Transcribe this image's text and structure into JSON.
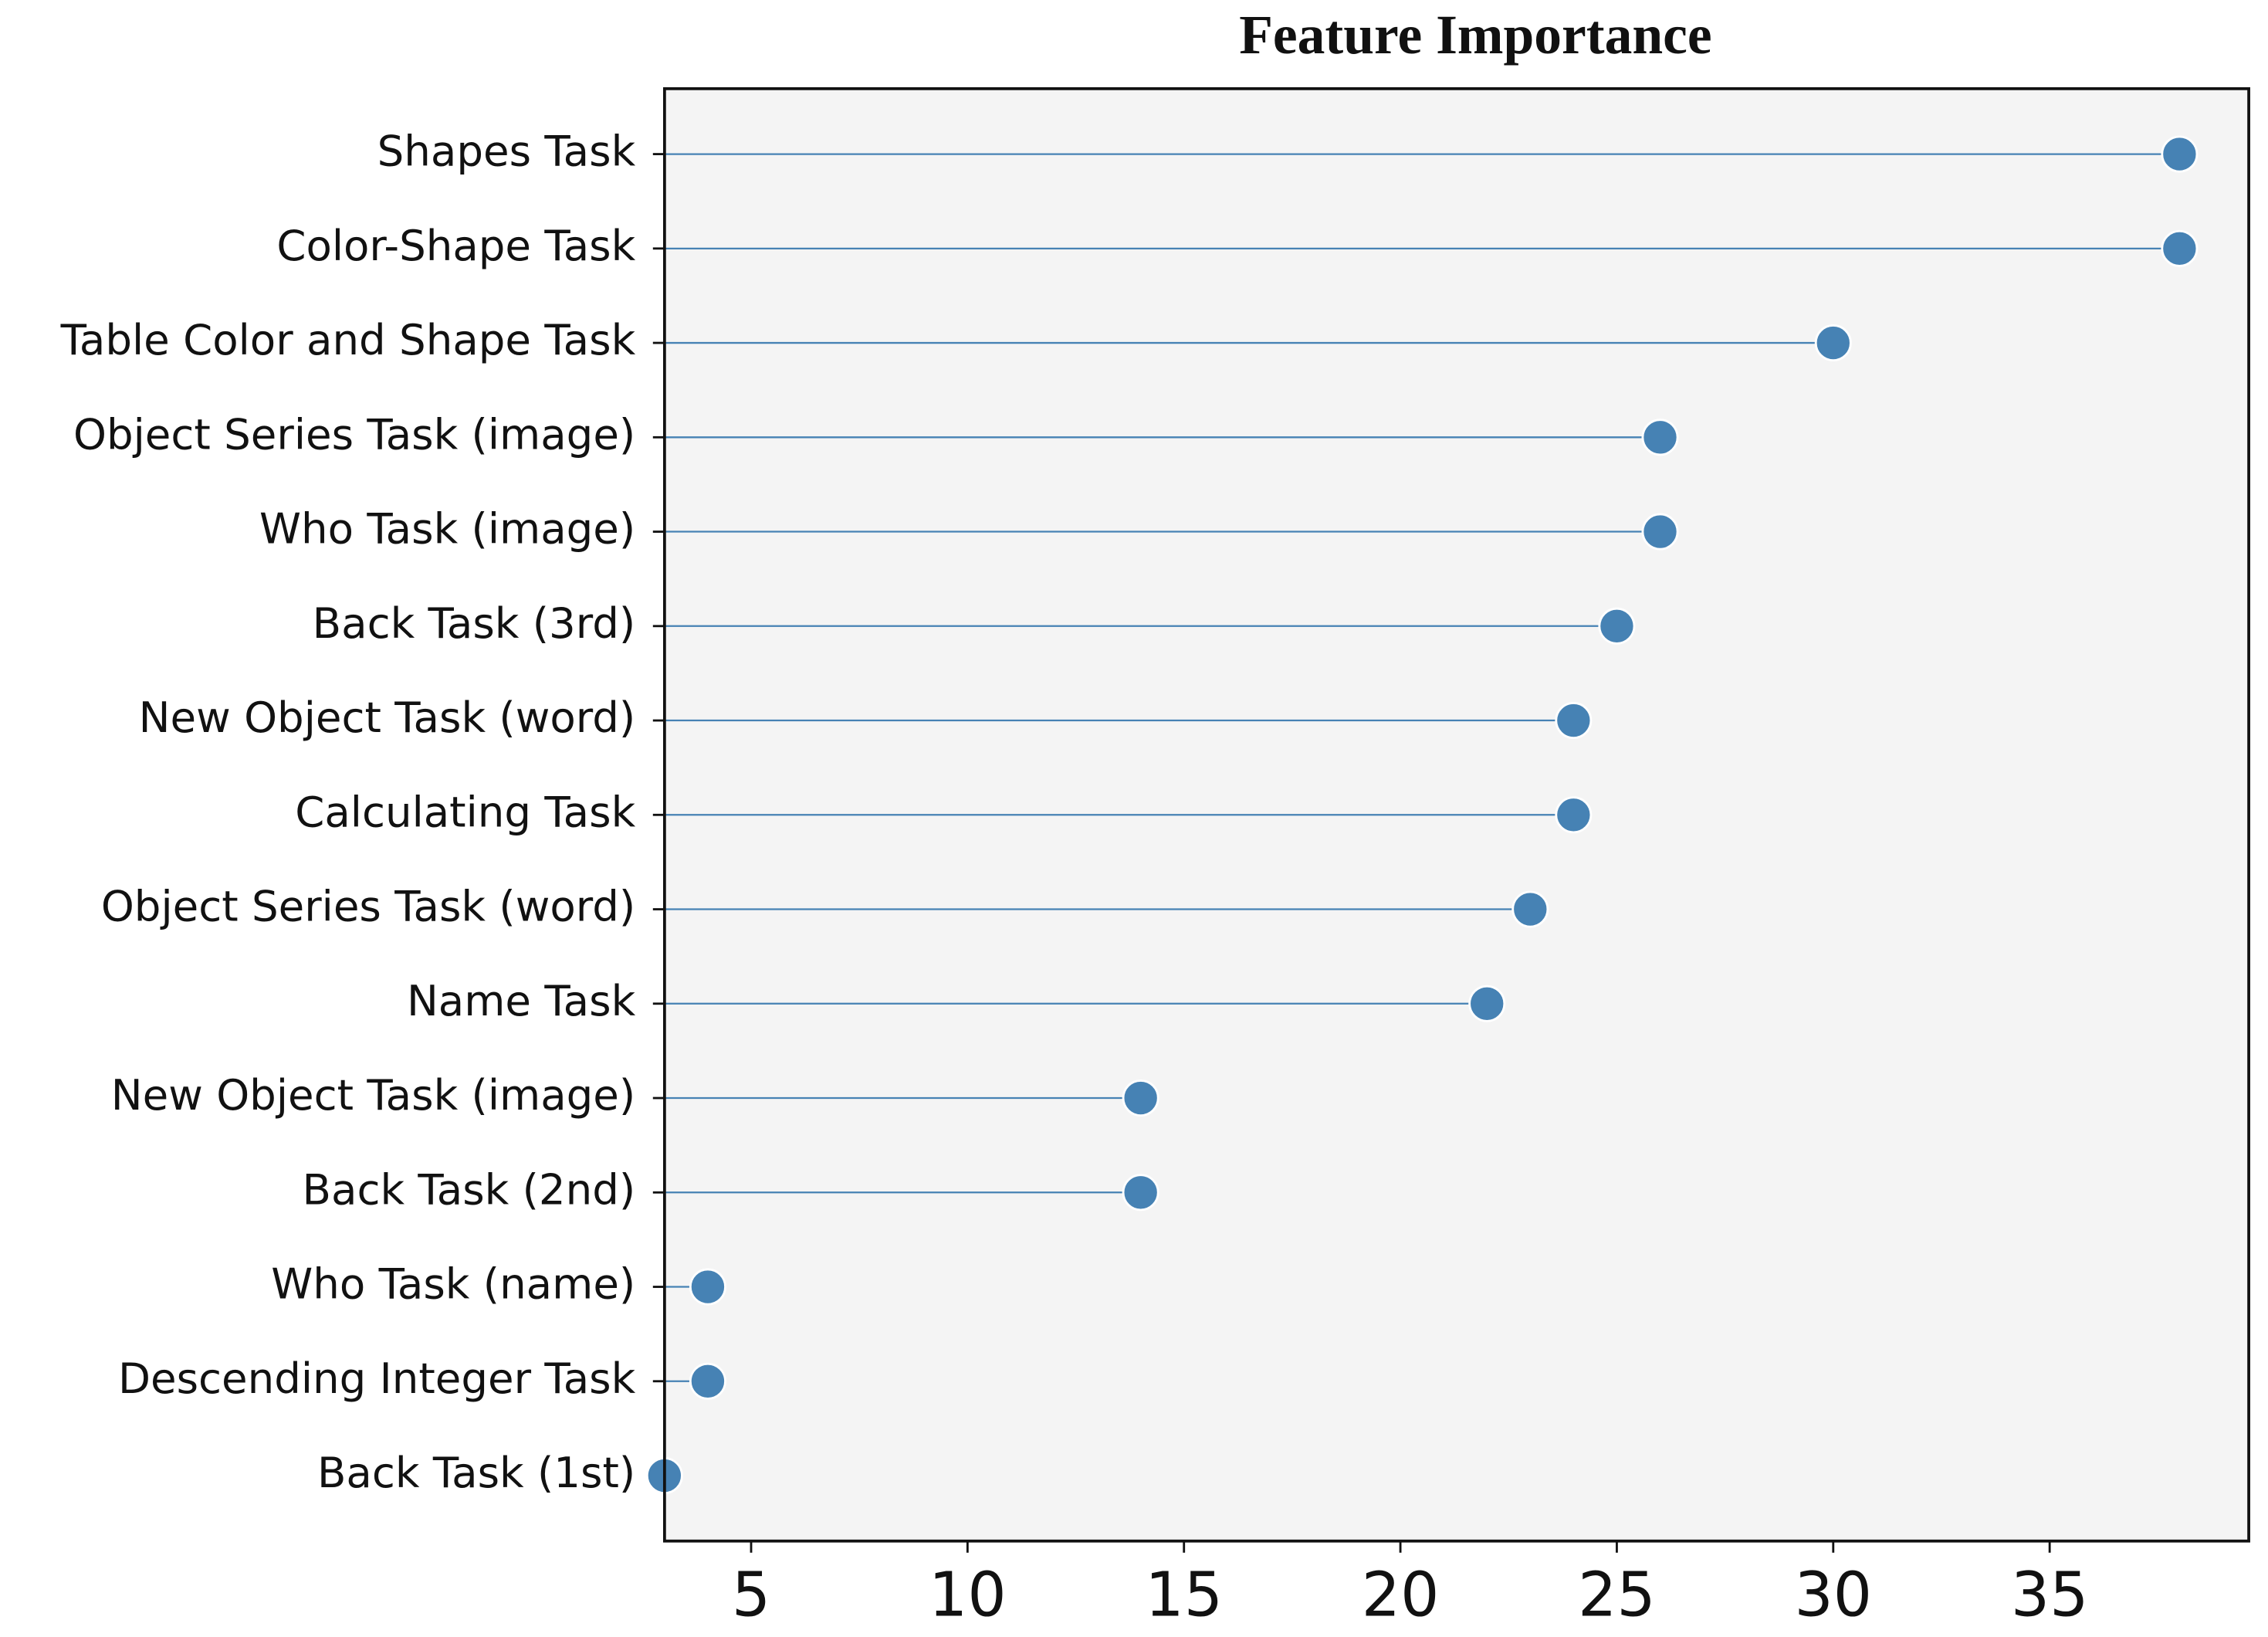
{
  "chart_data": {
    "type": "lollipop",
    "orientation": "horizontal",
    "title": "Feature Importance",
    "categories": [
      "Shapes Task",
      "Color-Shape Task",
      "Table Color and Shape Task",
      "Object Series Task (image)",
      "Who Task (image)",
      "Back Task (3rd)",
      "New Object Task (word)",
      "Calculating Task",
      "Object Series Task (word)",
      "Name Task",
      "New Object Task (image)",
      "Back Task (2nd)",
      "Who Task (name)",
      "Descending Integer Task",
      "Back Task (1st)"
    ],
    "values": [
      38,
      38,
      30,
      26,
      26,
      25,
      24,
      24,
      23,
      22,
      14,
      14,
      4,
      4,
      3
    ],
    "color": "#4682b4",
    "background": "#f4f4f4",
    "xlim": [
      3,
      39.6
    ],
    "xticks": [
      5,
      10,
      15,
      20,
      25,
      30,
      35
    ],
    "grid": false
  }
}
